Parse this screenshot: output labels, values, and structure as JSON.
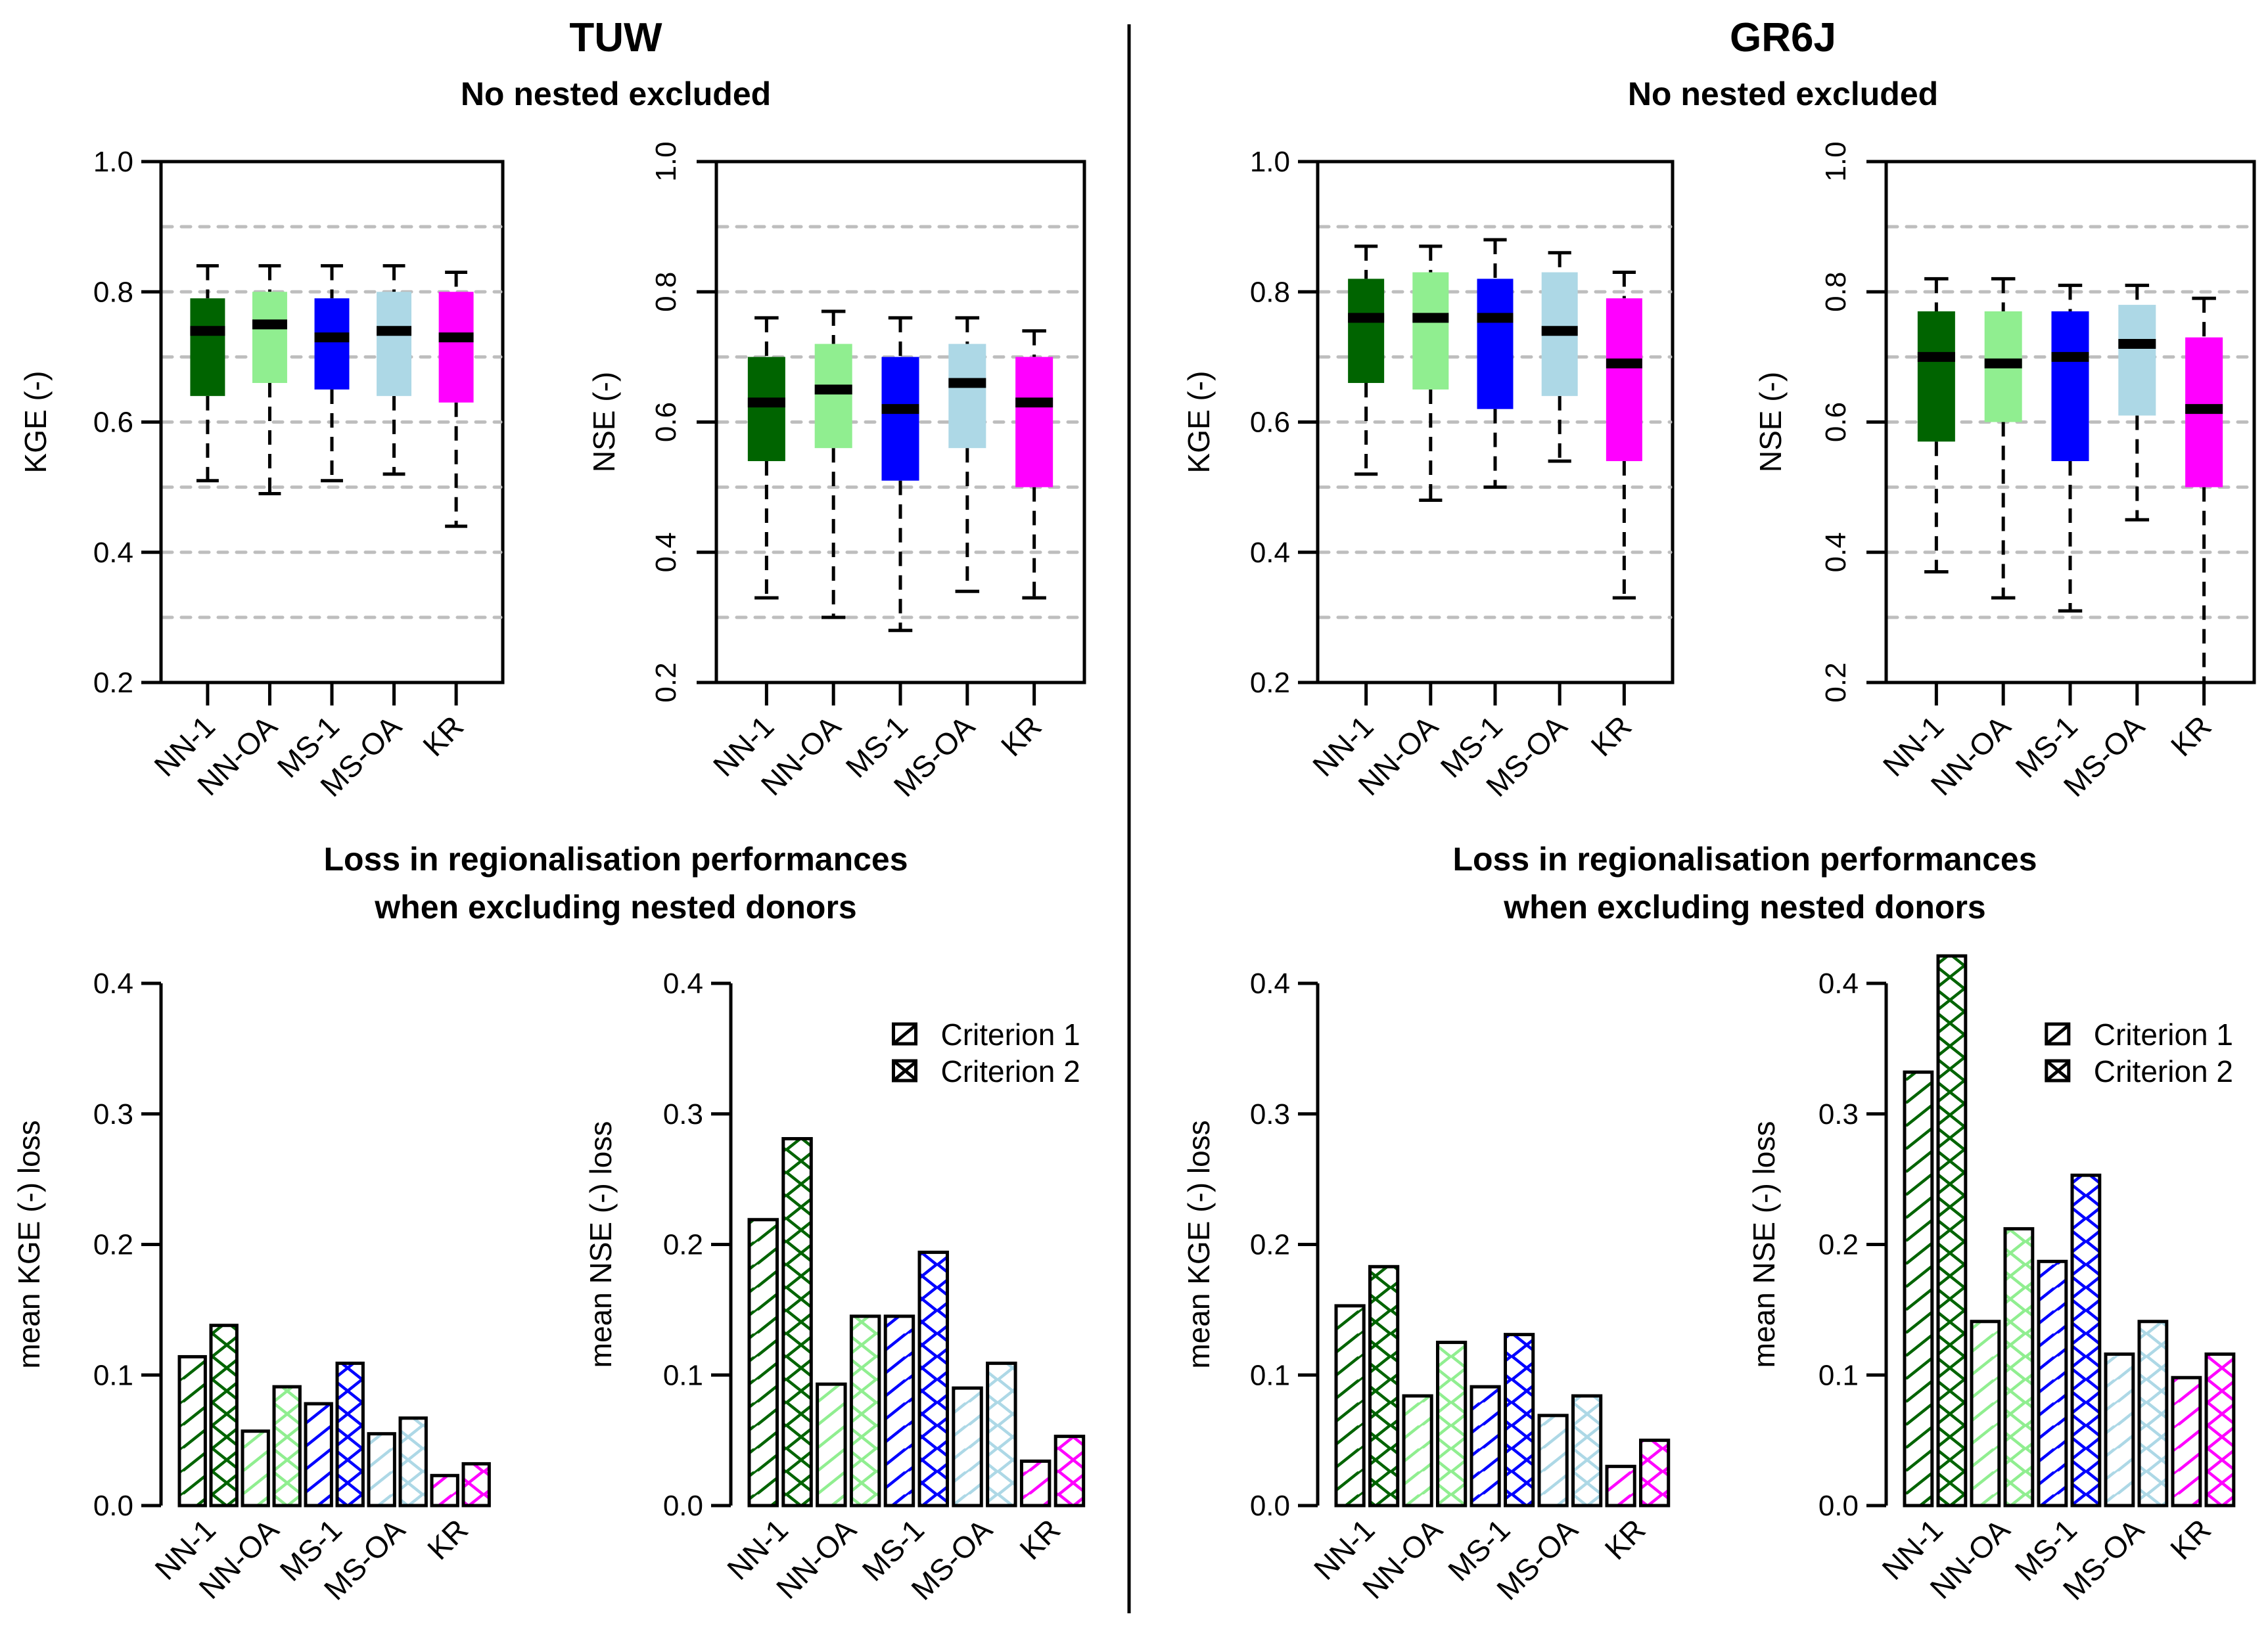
{
  "colors": {
    "NN-1": "#006400",
    "NN-OA": "#90EE90",
    "MS-1": "#0000FF",
    "MS-OA": "#ADD8E6",
    "KR": "#FF00FF",
    "grid": "#BEBEBE",
    "axis": "#000000"
  },
  "headers": {
    "left_model": "TUW",
    "right_model": "GR6J",
    "top_subtitle": "No nested excluded",
    "bottom_title_line1": "Loss in regionalisation performances",
    "bottom_title_line2": "when excluding nested donors"
  },
  "chart_data": [
    {
      "id": "tuw-kge-box",
      "type": "box",
      "model": "TUW",
      "title": "",
      "xlabel": "",
      "ylabel": "KGE (-)",
      "ylim": [
        0.2,
        1.0
      ],
      "yticks": [
        "0.2",
        "0.4",
        "0.6",
        "0.8",
        "1.0"
      ],
      "ytick_rotation": "horizontal",
      "grid": [
        0.3,
        0.4,
        0.5,
        0.6,
        0.7,
        0.8,
        0.9
      ],
      "categories": [
        "NN-1",
        "NN-OA",
        "MS-1",
        "MS-OA",
        "KR"
      ],
      "boxes": [
        {
          "whisker_low": 0.51,
          "q1": 0.64,
          "median": 0.74,
          "q3": 0.79,
          "whisker_high": 0.84
        },
        {
          "whisker_low": 0.49,
          "q1": 0.66,
          "median": 0.75,
          "q3": 0.8,
          "whisker_high": 0.84
        },
        {
          "whisker_low": 0.51,
          "q1": 0.65,
          "median": 0.73,
          "q3": 0.79,
          "whisker_high": 0.84
        },
        {
          "whisker_low": 0.52,
          "q1": 0.64,
          "median": 0.74,
          "q3": 0.8,
          "whisker_high": 0.84
        },
        {
          "whisker_low": 0.44,
          "q1": 0.63,
          "median": 0.73,
          "q3": 0.8,
          "whisker_high": 0.83
        }
      ]
    },
    {
      "id": "tuw-nse-box",
      "type": "box",
      "model": "TUW",
      "title": "",
      "xlabel": "",
      "ylabel": "NSE (-)",
      "ylim": [
        0.2,
        1.0
      ],
      "yticks": [
        "0.2",
        "0.4",
        "0.6",
        "0.8",
        "1.0"
      ],
      "ytick_rotation": "vertical",
      "grid": [
        0.3,
        0.4,
        0.5,
        0.6,
        0.7,
        0.8,
        0.9
      ],
      "categories": [
        "NN-1",
        "NN-OA",
        "MS-1",
        "MS-OA",
        "KR"
      ],
      "boxes": [
        {
          "whisker_low": 0.33,
          "q1": 0.54,
          "median": 0.63,
          "q3": 0.7,
          "whisker_high": 0.76
        },
        {
          "whisker_low": 0.3,
          "q1": 0.56,
          "median": 0.65,
          "q3": 0.72,
          "whisker_high": 0.77
        },
        {
          "whisker_low": 0.28,
          "q1": 0.51,
          "median": 0.62,
          "q3": 0.7,
          "whisker_high": 0.76
        },
        {
          "whisker_low": 0.34,
          "q1": 0.56,
          "median": 0.66,
          "q3": 0.72,
          "whisker_high": 0.76
        },
        {
          "whisker_low": 0.33,
          "q1": 0.5,
          "median": 0.63,
          "q3": 0.7,
          "whisker_high": 0.74
        }
      ]
    },
    {
      "id": "gr6j-kge-box",
      "type": "box",
      "model": "GR6J",
      "title": "",
      "xlabel": "",
      "ylabel": "KGE (-)",
      "ylim": [
        0.2,
        1.0
      ],
      "yticks": [
        "0.2",
        "0.4",
        "0.6",
        "0.8",
        "1.0"
      ],
      "ytick_rotation": "horizontal",
      "grid": [
        0.3,
        0.4,
        0.5,
        0.6,
        0.7,
        0.8,
        0.9
      ],
      "categories": [
        "NN-1",
        "NN-OA",
        "MS-1",
        "MS-OA",
        "KR"
      ],
      "boxes": [
        {
          "whisker_low": 0.52,
          "q1": 0.66,
          "median": 0.76,
          "q3": 0.82,
          "whisker_high": 0.87
        },
        {
          "whisker_low": 0.48,
          "q1": 0.65,
          "median": 0.76,
          "q3": 0.83,
          "whisker_high": 0.87
        },
        {
          "whisker_low": 0.5,
          "q1": 0.62,
          "median": 0.76,
          "q3": 0.82,
          "whisker_high": 0.88
        },
        {
          "whisker_low": 0.54,
          "q1": 0.64,
          "median": 0.74,
          "q3": 0.83,
          "whisker_high": 0.86
        },
        {
          "whisker_low": 0.33,
          "q1": 0.54,
          "median": 0.69,
          "q3": 0.79,
          "whisker_high": 0.83
        }
      ]
    },
    {
      "id": "gr6j-nse-box",
      "type": "box",
      "model": "GR6J",
      "title": "",
      "xlabel": "",
      "ylabel": "NSE (-)",
      "ylim": [
        0.2,
        1.0
      ],
      "yticks": [
        "0.2",
        "0.4",
        "0.6",
        "0.8",
        "1.0"
      ],
      "ytick_rotation": "vertical",
      "grid": [
        0.3,
        0.4,
        0.5,
        0.6,
        0.7,
        0.8,
        0.9
      ],
      "categories": [
        "NN-1",
        "NN-OA",
        "MS-1",
        "MS-OA",
        "KR"
      ],
      "boxes": [
        {
          "whisker_low": 0.37,
          "q1": 0.57,
          "median": 0.7,
          "q3": 0.77,
          "whisker_high": 0.82
        },
        {
          "whisker_low": 0.33,
          "q1": 0.6,
          "median": 0.69,
          "q3": 0.77,
          "whisker_high": 0.82
        },
        {
          "whisker_low": 0.31,
          "q1": 0.54,
          "median": 0.7,
          "q3": 0.77,
          "whisker_high": 0.81
        },
        {
          "whisker_low": 0.45,
          "q1": 0.61,
          "median": 0.72,
          "q3": 0.78,
          "whisker_high": 0.81
        },
        {
          "whisker_low": 0.2,
          "q1": 0.5,
          "median": 0.62,
          "q3": 0.73,
          "whisker_high": 0.79
        }
      ]
    },
    {
      "id": "tuw-kge-loss",
      "type": "bar",
      "model": "TUW",
      "title": "",
      "xlabel": "",
      "ylabel": "mean KGE (-) loss",
      "ylim": [
        0.0,
        0.4
      ],
      "yticks": [
        "0.0",
        "0.1",
        "0.2",
        "0.3",
        "0.4"
      ],
      "categories": [
        "NN-1",
        "NN-OA",
        "MS-1",
        "MS-OA",
        "KR"
      ],
      "legend": null,
      "series": [
        {
          "name": "Criterion 1",
          "pattern": "diagonal",
          "values": [
            0.114,
            0.057,
            0.078,
            0.055,
            0.023
          ]
        },
        {
          "name": "Criterion 2",
          "pattern": "crosshatch",
          "values": [
            0.138,
            0.091,
            0.109,
            0.067,
            0.032
          ]
        }
      ]
    },
    {
      "id": "tuw-nse-loss",
      "type": "bar",
      "model": "TUW",
      "title": "",
      "xlabel": "",
      "ylabel": "mean NSE (-) loss",
      "ylim": [
        0.0,
        0.4
      ],
      "yticks": [
        "0.0",
        "0.1",
        "0.2",
        "0.3",
        "0.4"
      ],
      "categories": [
        "NN-1",
        "NN-OA",
        "MS-1",
        "MS-OA",
        "KR"
      ],
      "legend": {
        "placement": "top-right",
        "entries": [
          "Criterion 1",
          "Criterion 2"
        ]
      },
      "series": [
        {
          "name": "Criterion 1",
          "pattern": "diagonal",
          "values": [
            0.219,
            0.093,
            0.145,
            0.09,
            0.034
          ]
        },
        {
          "name": "Criterion 2",
          "pattern": "crosshatch",
          "values": [
            0.281,
            0.145,
            0.194,
            0.109,
            0.053
          ]
        }
      ]
    },
    {
      "id": "gr6j-kge-loss",
      "type": "bar",
      "model": "GR6J",
      "title": "",
      "xlabel": "",
      "ylabel": "mean KGE (-) loss",
      "ylim": [
        0.0,
        0.4
      ],
      "yticks": [
        "0.0",
        "0.1",
        "0.2",
        "0.3",
        "0.4"
      ],
      "categories": [
        "NN-1",
        "NN-OA",
        "MS-1",
        "MS-OA",
        "KR"
      ],
      "legend": null,
      "series": [
        {
          "name": "Criterion 1",
          "pattern": "diagonal",
          "values": [
            0.153,
            0.084,
            0.091,
            0.069,
            0.03
          ]
        },
        {
          "name": "Criterion 2",
          "pattern": "crosshatch",
          "values": [
            0.183,
            0.125,
            0.131,
            0.084,
            0.05
          ]
        }
      ]
    },
    {
      "id": "gr6j-nse-loss",
      "type": "bar",
      "model": "GR6J",
      "title": "",
      "xlabel": "",
      "ylabel": "mean NSE (-) loss",
      "ylim": [
        0.0,
        0.4
      ],
      "yticks": [
        "0.0",
        "0.1",
        "0.2",
        "0.3",
        "0.4"
      ],
      "categories": [
        "NN-1",
        "NN-OA",
        "MS-1",
        "MS-OA",
        "KR"
      ],
      "legend": {
        "placement": "top-right",
        "entries": [
          "Criterion 1",
          "Criterion 2"
        ]
      },
      "series": [
        {
          "name": "Criterion 1",
          "pattern": "diagonal",
          "values": [
            0.332,
            0.141,
            0.187,
            0.116,
            0.098
          ]
        },
        {
          "name": "Criterion 2",
          "pattern": "crosshatch",
          "values": [
            0.421,
            0.212,
            0.253,
            0.141,
            0.116
          ]
        }
      ]
    }
  ]
}
